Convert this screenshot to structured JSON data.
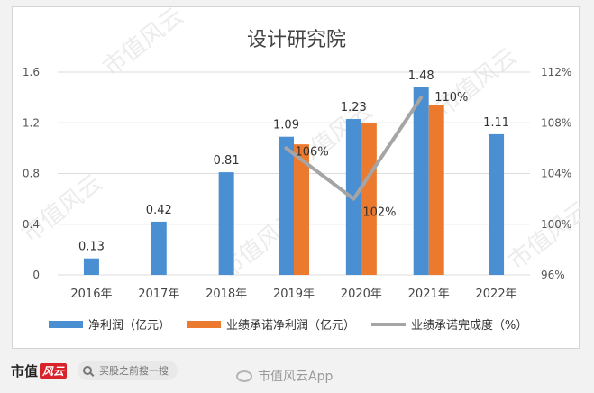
{
  "chart_data": {
    "type": "bar",
    "title": "设计研究院",
    "categories": [
      "2016年",
      "2017年",
      "2018年",
      "2019年",
      "2020年",
      "2021年",
      "2022年"
    ],
    "series": [
      {
        "name": "净利润（亿元）",
        "kind": "bar",
        "axis": "left",
        "color": "#4a8fd2",
        "values": [
          0.13,
          0.42,
          0.81,
          1.09,
          1.23,
          1.48,
          1.11
        ],
        "labels": [
          "0.13",
          "0.42",
          "0.81",
          "1.09",
          "1.23",
          "1.48",
          "1.11"
        ]
      },
      {
        "name": "业绩承诺净利润（亿元）",
        "kind": "bar",
        "axis": "left",
        "color": "#ec7a2e",
        "values": [
          null,
          null,
          null,
          1.03,
          1.2,
          1.34,
          null
        ]
      },
      {
        "name": "业绩承诺完成度（%）",
        "kind": "line",
        "axis": "right",
        "color": "#a5a5a5",
        "values": [
          null,
          null,
          null,
          106,
          102,
          110,
          null
        ],
        "labels": [
          null,
          null,
          null,
          "106%",
          "102%",
          "110%",
          null
        ]
      }
    ],
    "left_axis": {
      "ylim": [
        0,
        1.6
      ],
      "ticks": [
        "0",
        "0.4",
        "0.8",
        "1.2",
        "1.6"
      ]
    },
    "right_axis": {
      "ylim": [
        96,
        112
      ],
      "ticks": [
        "96%",
        "100%",
        "104%",
        "108%",
        "112%"
      ]
    },
    "grid": true,
    "legend_position": "bottom"
  },
  "watermark": "市值风云",
  "footer": {
    "brand_text": "市值",
    "brand_mark": "风云",
    "search_placeholder": "买股之前搜一搜",
    "weibo_text": "市值风云App"
  }
}
